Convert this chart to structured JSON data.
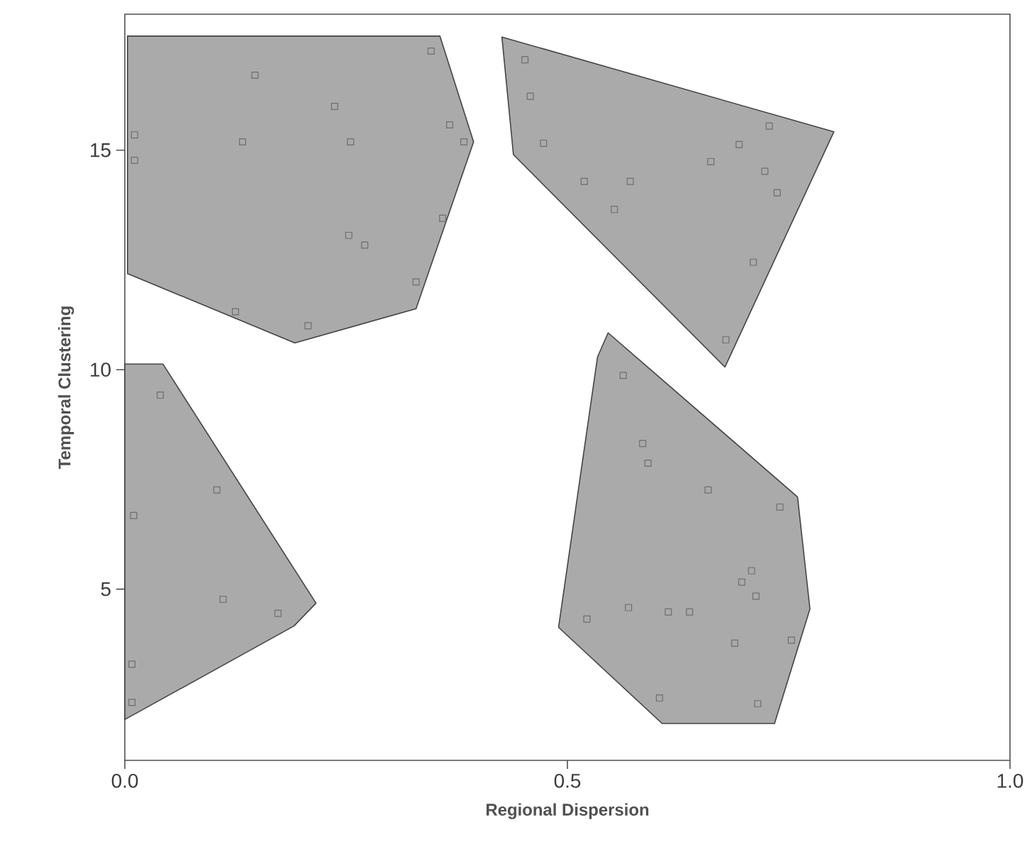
{
  "chart_data": {
    "type": "scatter",
    "xlabel": "Regional Dispersion",
    "ylabel": "Temporal Clustering",
    "xlim": [
      0,
      1
    ],
    "ylim": [
      1.1,
      18.1
    ],
    "xticks": [
      {
        "value": 0,
        "label": "0.0"
      },
      {
        "value": 0.5,
        "label": "0.5"
      },
      {
        "value": 1,
        "label": "1.0"
      }
    ],
    "yticks": [
      5,
      10,
      15
    ],
    "marker": "square",
    "series": [
      {
        "type": "area",
        "marker": "none",
        "color": "#aaaaaa",
        "x": [
          0.003,
          0.356,
          0.394,
          0.329,
          0.192,
          0.003
        ],
        "values": [
          17.6,
          17.6,
          15.19,
          11.39,
          10.61,
          12.19
        ]
      },
      {
        "type": "area",
        "marker": "none",
        "color": "#aaaaaa",
        "x": [
          0.426,
          0.801,
          0.678,
          0.439
        ],
        "values": [
          17.58,
          15.42,
          10.06,
          14.9
        ]
      },
      {
        "type": "area",
        "marker": "none",
        "color": "#aaaaaa",
        "x": [
          0.216,
          0.191,
          0,
          0,
          0.043
        ],
        "values": [
          4.68,
          4.16,
          2.03,
          10.13,
          10.13
        ]
      },
      {
        "type": "area",
        "marker": "none",
        "color": "#aaaaaa",
        "x": [
          0.546,
          0.76,
          0.774,
          0.734,
          0.607,
          0.49,
          0.534
        ],
        "values": [
          10.84,
          7.1,
          4.55,
          1.94,
          1.94,
          4.13,
          10.29
        ]
      },
      {
        "color": "#6e6e6e",
        "x": [
          0.346,
          0.147,
          0.237,
          0.367,
          0.383,
          0.133,
          0.255,
          0.011,
          0.011,
          0.359,
          0.253,
          0.271,
          0.329,
          0.125,
          0.207,
          0.452,
          0.458,
          0.473,
          0.519,
          0.571,
          0.553,
          0.662,
          0.694,
          0.728,
          0.723,
          0.737,
          0.71,
          0.679,
          0.04,
          0.104,
          0.01,
          0.111,
          0.173,
          0.008,
          0.008,
          0.563,
          0.585,
          0.591,
          0.659,
          0.74,
          0.708,
          0.697,
          0.713,
          0.522,
          0.569,
          0.614,
          0.638,
          0.689,
          0.753,
          0.604,
          0.715
        ],
        "values": [
          17.26,
          16.71,
          16.0,
          15.58,
          15.19,
          15.19,
          15.19,
          15.35,
          14.77,
          13.45,
          13.06,
          12.84,
          12.0,
          11.32,
          11.0,
          17.06,
          16.23,
          15.16,
          14.29,
          14.29,
          13.65,
          14.74,
          15.13,
          15.55,
          14.52,
          14.03,
          12.45,
          10.68,
          9.42,
          7.26,
          6.68,
          4.77,
          4.45,
          3.29,
          2.42,
          9.87,
          8.32,
          7.87,
          7.26,
          6.87,
          5.42,
          5.16,
          4.84,
          4.32,
          4.58,
          4.48,
          4.48,
          3.77,
          3.84,
          2.52,
          2.39
        ]
      }
    ]
  }
}
